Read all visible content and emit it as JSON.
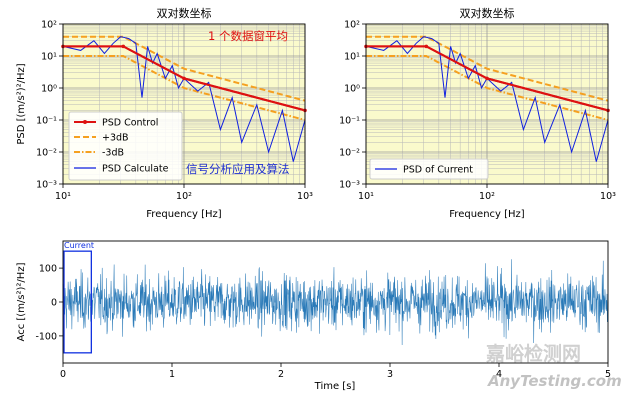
{
  "chart_data": [
    {
      "type": "line",
      "title": "双对数坐标",
      "xlabel": "Frequency [Hz]",
      "ylabel": "PSD [(m/s²)²/Hz]",
      "xscale": "log",
      "yscale": "log",
      "xlim": [
        10,
        1000
      ],
      "ylim": [
        0.001,
        100
      ],
      "x_ticks": [
        "10¹",
        "10²",
        "10³"
      ],
      "y_ticks": [
        "10⁻³",
        "10⁻²",
        "10⁻¹",
        "10⁰",
        "10¹",
        "10²"
      ],
      "annotation_top": "1 个数据窗平均",
      "annotation_bottom": "信号分析应用及算法",
      "legend": [
        "PSD Control",
        "+3dB",
        "-3dB",
        "PSD Calculate"
      ],
      "series": [
        {
          "name": "PSD Control",
          "x": [
            10,
            31.5,
            100,
            1000
          ],
          "values": [
            20,
            20,
            2,
            0.2
          ]
        },
        {
          "name": "+3dB",
          "x": [
            10,
            31.5,
            100,
            1000
          ],
          "values": [
            40,
            40,
            4,
            0.4
          ]
        },
        {
          "name": "-3dB",
          "x": [
            10,
            31.5,
            100,
            1000
          ],
          "values": [
            10,
            10,
            1,
            0.1
          ]
        },
        {
          "name": "PSD Calculate",
          "x": [
            10,
            14,
            18,
            22,
            26,
            30,
            35,
            40,
            45,
            50,
            55,
            60,
            70,
            80,
            90,
            100,
            130,
            160,
            200,
            250,
            300,
            400,
            500,
            650,
            800,
            1000
          ],
          "values": [
            20,
            15,
            30,
            12,
            25,
            40,
            35,
            25,
            0.5,
            20,
            6,
            12,
            2,
            5,
            1,
            2,
            0.8,
            1.5,
            0.05,
            0.5,
            0.02,
            0.3,
            0.01,
            0.2,
            0.005,
            0.1
          ]
        }
      ]
    },
    {
      "type": "line",
      "title": "双对数坐标",
      "xlabel": "Frequency [Hz]",
      "xscale": "log",
      "yscale": "log",
      "xlim": [
        10,
        1000
      ],
      "ylim": [
        0.001,
        100
      ],
      "x_ticks": [
        "10¹",
        "10²",
        "10³"
      ],
      "y_ticks": [
        "10⁻³",
        "10⁻²",
        "10⁻¹",
        "10⁰",
        "10¹",
        "10²"
      ],
      "legend": [
        "PSD of Current"
      ],
      "series": [
        {
          "name": "PSD Control",
          "x": [
            10,
            31.5,
            100,
            1000
          ],
          "values": [
            20,
            20,
            2,
            0.2
          ]
        },
        {
          "name": "+3dB",
          "x": [
            10,
            31.5,
            100,
            1000
          ],
          "values": [
            40,
            40,
            4,
            0.4
          ]
        },
        {
          "name": "-3dB",
          "x": [
            10,
            31.5,
            100,
            1000
          ],
          "values": [
            10,
            10,
            1,
            0.1
          ]
        },
        {
          "name": "PSD of Current",
          "x": [
            10,
            14,
            18,
            22,
            26,
            30,
            35,
            40,
            45,
            50,
            55,
            60,
            70,
            80,
            90,
            100,
            130,
            160,
            200,
            250,
            300,
            400,
            500,
            650,
            800,
            1000
          ],
          "values": [
            20,
            15,
            30,
            12,
            25,
            40,
            35,
            25,
            0.5,
            20,
            6,
            12,
            2,
            5,
            1,
            2,
            0.8,
            1.5,
            0.05,
            0.5,
            0.02,
            0.3,
            0.01,
            0.2,
            0.005,
            0.1
          ]
        }
      ]
    },
    {
      "type": "line",
      "xlabel": "Time [s]",
      "ylabel": "Acc [(m/s²)²/Hz]",
      "xlim": [
        0,
        5
      ],
      "ylim": [
        -180,
        180
      ],
      "x_ticks": [
        0,
        1,
        2,
        3,
        4,
        5
      ],
      "y_ticks": [
        -100,
        0,
        100
      ],
      "window_label": "Current",
      "window_range_s": [
        0,
        0.26
      ],
      "window_amplitude": [
        -150,
        150
      ],
      "signal_std": 40,
      "signal_peak": 140
    }
  ],
  "colors": {
    "control": "#dd1111",
    "bound": "#f5a020",
    "measured": "#1020e0",
    "time_signal": "#2a7ab8",
    "plot_bg": "#fafacc",
    "grid": "#b8b8b8"
  },
  "watermark": {
    "cn": "嘉峪检测网",
    "en": "AnyTesting.com"
  }
}
